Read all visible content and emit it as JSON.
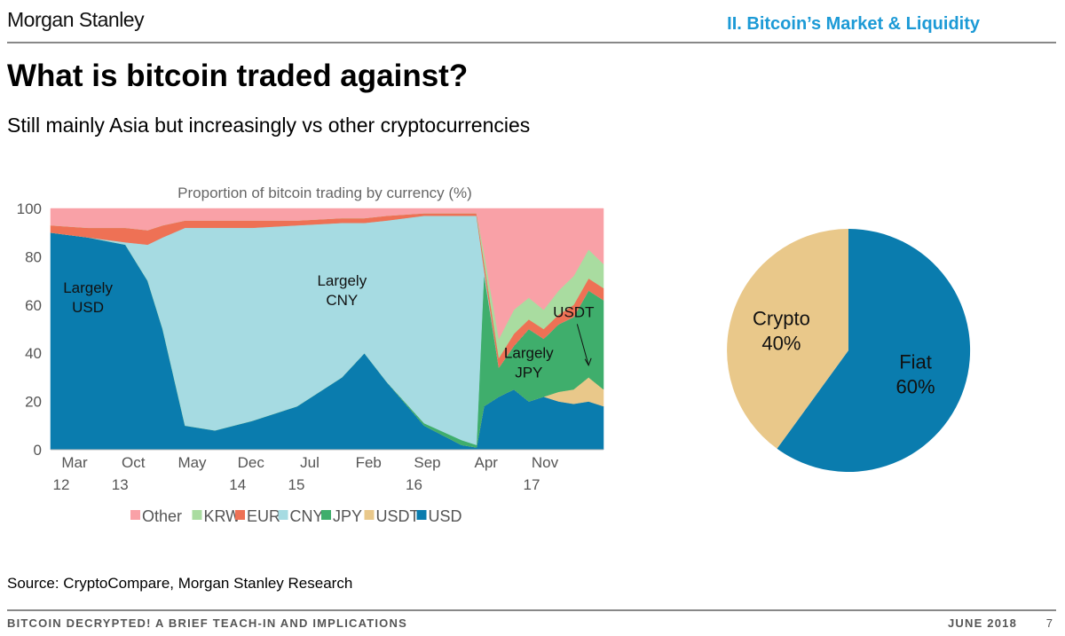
{
  "header": {
    "logo_text": "Morgan Stanley",
    "section": "II. Bitcoin’s Market & Liquidity"
  },
  "slide": {
    "title": "What is bitcoin traded against?",
    "subtitle": "Still mainly Asia but increasingly vs other cryptocurrencies",
    "source": "Source: CryptoCompare, Morgan Stanley Research"
  },
  "footer": {
    "left": "BITCOIN DECRYPTED! A BRIEF TEACH-IN AND IMPLICATIONS",
    "date": "JUNE 2018",
    "page": "7"
  },
  "colors": {
    "Other": "#f9a1a7",
    "KRW": "#a9dca0",
    "EUR": "#ee7155",
    "CNY": "#a6dbe2",
    "JPY": "#3fae6c",
    "USDT": "#e9c88a",
    "USD": "#0a7cae"
  },
  "chart_data": [
    {
      "type": "area",
      "stacked": true,
      "title": "Proportion of bitcoin trading by currency (%)",
      "xlabel": "",
      "ylabel": "",
      "ylim": [
        0,
        100
      ],
      "yticks": [
        0,
        20,
        40,
        60,
        80,
        100
      ],
      "x_tick_labels": [
        [
          "Mar",
          "12"
        ],
        [
          "Oct",
          "13"
        ],
        [
          "May",
          ""
        ],
        [
          "Dec",
          "14"
        ],
        [
          "Jul",
          "15"
        ],
        [
          "Feb",
          ""
        ],
        [
          "Sep",
          "16"
        ],
        [
          "Apr",
          ""
        ],
        [
          "Nov",
          "17"
        ]
      ],
      "x": [
        "2012-03",
        "2012-08",
        "2013-01",
        "2013-04",
        "2013-06",
        "2013-09",
        "2014-01",
        "2014-06",
        "2014-12",
        "2015-06",
        "2015-09",
        "2015-12",
        "2016-05",
        "2016-10",
        "2016-12",
        "2017-01",
        "2017-03",
        "2017-05",
        "2017-07",
        "2017-09",
        "2017-11",
        "2018-01",
        "2018-03",
        "2018-05"
      ],
      "series": [
        {
          "name": "USD",
          "values": [
            90,
            88,
            85,
            70,
            50,
            10,
            8,
            12,
            18,
            30,
            40,
            28,
            10,
            2,
            1,
            18,
            22,
            25,
            20,
            22,
            20,
            19,
            20,
            18
          ]
        },
        {
          "name": "USDT",
          "values": [
            0,
            0,
            0,
            0,
            0,
            0,
            0,
            0,
            0,
            0,
            0,
            0,
            0,
            0,
            0,
            0,
            0,
            0,
            0,
            0,
            4,
            6,
            10,
            7
          ]
        },
        {
          "name": "JPY",
          "values": [
            0,
            0,
            0,
            0,
            0,
            0,
            0,
            0,
            0,
            0,
            0,
            0,
            1,
            2,
            1,
            55,
            12,
            18,
            30,
            24,
            28,
            30,
            36,
            37
          ]
        },
        {
          "name": "CNY",
          "values": [
            0,
            0,
            1,
            15,
            38,
            82,
            84,
            80,
            75,
            64,
            54,
            67,
            86,
            93,
            95,
            2,
            0,
            0,
            0,
            0,
            0,
            0,
            0,
            0
          ]
        },
        {
          "name": "EUR",
          "values": [
            3,
            4,
            6,
            6,
            5,
            3,
            3,
            3,
            2,
            2,
            2,
            2,
            1,
            1,
            1,
            3,
            4,
            5,
            4,
            4,
            4,
            5,
            5,
            5
          ]
        },
        {
          "name": "KRW",
          "values": [
            0,
            0,
            0,
            0,
            0,
            0,
            0,
            0,
            0,
            0,
            0,
            0,
            0,
            0,
            0,
            4,
            8,
            10,
            9,
            8,
            10,
            12,
            12,
            10
          ]
        },
        {
          "name": "Other",
          "values": [
            7,
            8,
            8,
            9,
            7,
            5,
            5,
            5,
            5,
            4,
            4,
            3,
            2,
            2,
            2,
            18,
            54,
            42,
            37,
            42,
            34,
            28,
            17,
            23
          ]
        }
      ],
      "legend": [
        "Other",
        "KRW",
        "EUR",
        "CNY",
        "JPY",
        "USDT",
        "USD"
      ],
      "legend_position": "bottom",
      "grid": false,
      "annotations": [
        {
          "text": "Largely\nUSD",
          "at_x": "2012-08",
          "at_y": 65
        },
        {
          "text": "Largely\nCNY",
          "at_x": "2015-06",
          "at_y": 68
        },
        {
          "text": "Largely\nJPY",
          "at_x": "2017-07",
          "at_y": 38
        },
        {
          "text": "USDT",
          "at_x": "2018-01",
          "at_y": 55,
          "arrow_to_x": "2018-03",
          "arrow_to_y": 35
        }
      ]
    },
    {
      "type": "pie",
      "slices": [
        {
          "label": "Fiat",
          "value": 60,
          "display": "60%"
        },
        {
          "label": "Crypto",
          "value": 40,
          "display": "40%"
        }
      ]
    }
  ]
}
